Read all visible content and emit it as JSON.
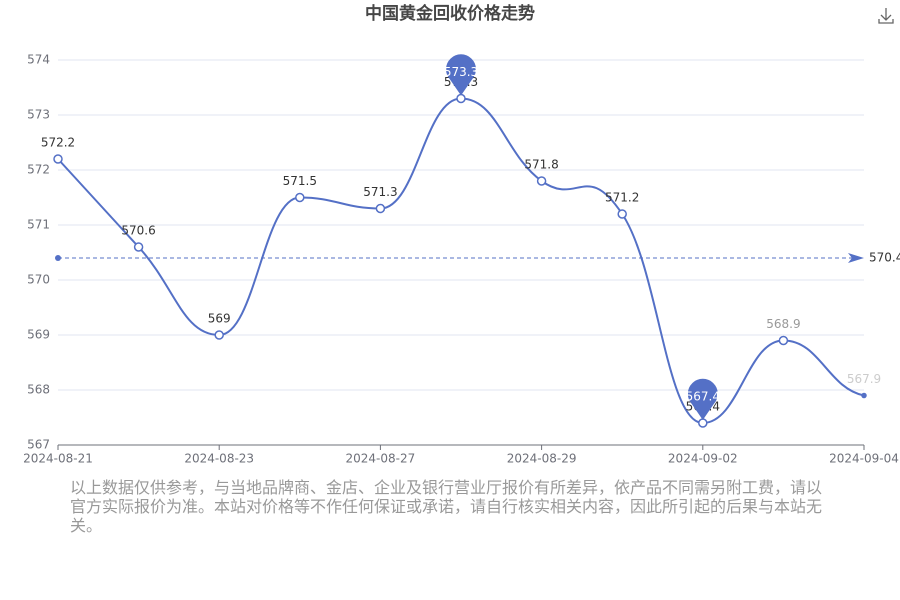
{
  "chart_data": {
    "type": "line",
    "title": "中国黄金回收价格走势",
    "categories": [
      "2024-08-21",
      null,
      "2024-08-23",
      null,
      "2024-08-27",
      null,
      "2024-08-29",
      null,
      "2024-09-02",
      null,
      "2024-09-04"
    ],
    "series": [
      {
        "color": "#5470c6",
        "values": [
          572.2,
          570.6,
          569,
          571.5,
          571.3,
          573.3,
          571.8,
          571.2,
          567.4,
          568.9,
          567.9
        ]
      }
    ],
    "ylim": [
      567,
      574
    ],
    "yticks": [
      567,
      568,
      569,
      570,
      571,
      572,
      573,
      574
    ],
    "grid": true,
    "average_line": 570.4,
    "note": "以上数据仅供参考，与当地品牌商、金店、企业及银行营业厅报价有所差异，依产品不同需另附工费，请以官方实际报价为准。本站对价格等不作任何保证或承诺，请自行核实相关内容，因此所引起的后果与本站无关。"
  }
}
